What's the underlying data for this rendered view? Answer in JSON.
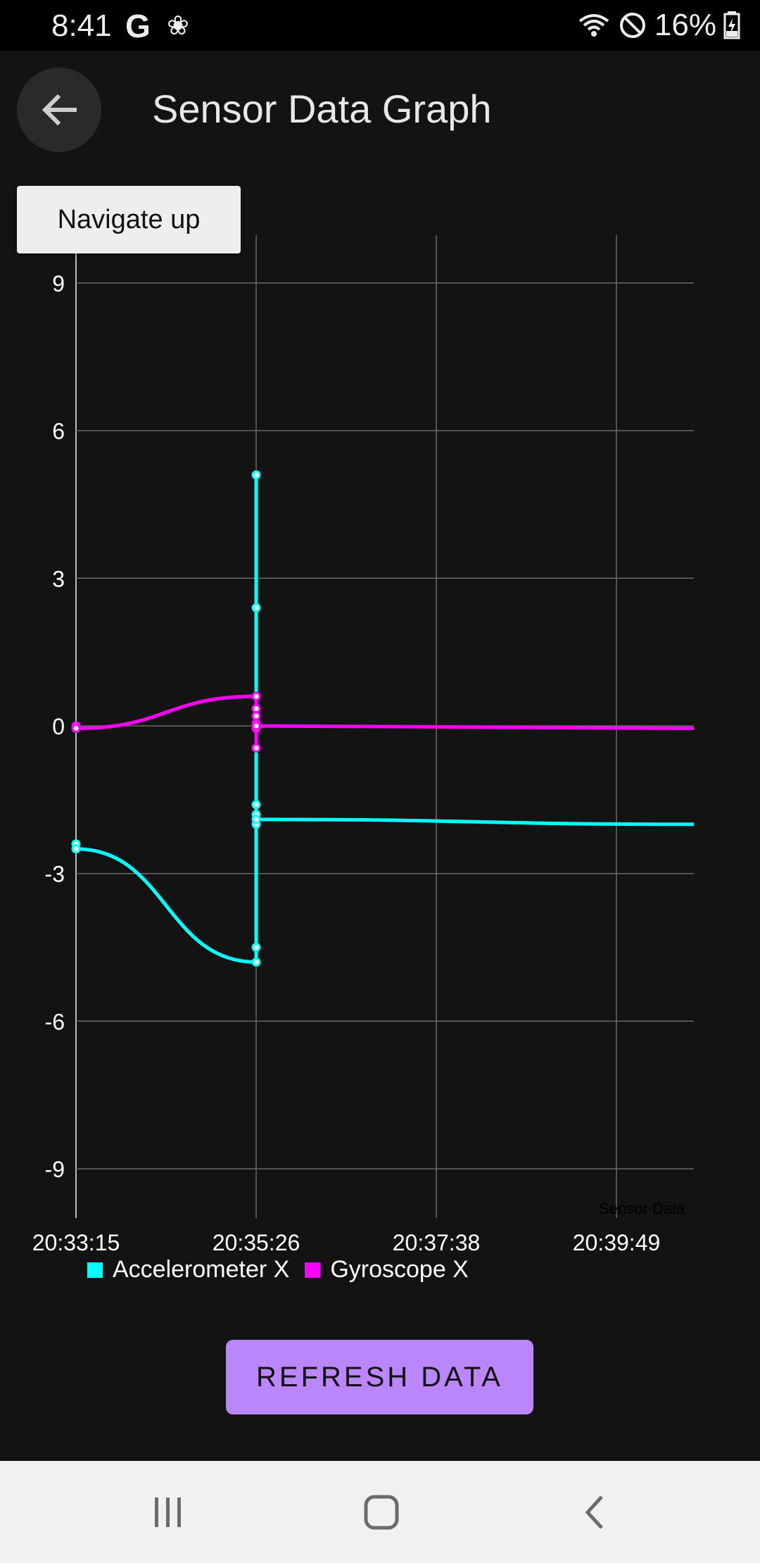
{
  "status": {
    "time": "8:41",
    "google_letter": "G",
    "battery_text": "16%",
    "icons": [
      "wifi-icon",
      "do-not-disturb-icon",
      "battery-charging-icon"
    ]
  },
  "toolbar": {
    "title": "Sensor Data Graph",
    "back_icon": "arrow-back-icon"
  },
  "tooltip": {
    "text": "Navigate up"
  },
  "chart_data": {
    "type": "line",
    "description": "Sensor Data",
    "x_ticks": [
      "20:33:15",
      "20:35:26",
      "20:37:38",
      "20:39:49"
    ],
    "y_ticks": [
      "9",
      "6",
      "3",
      "0",
      "-3",
      "-6",
      "-9"
    ],
    "ylim": [
      -10,
      10
    ],
    "grid": true,
    "legend_position": "bottom-left",
    "series": [
      {
        "name": "Accelerometer X",
        "color": "#00ffff",
        "x": [
          "20:33:15",
          "20:33:15",
          "20:35:26",
          "20:35:26",
          "20:35:26",
          "20:35:26",
          "20:35:26",
          "20:35:26",
          "20:35:26",
          "20:35:26",
          "20:41:00"
        ],
        "values": [
          -2.4,
          -2.5,
          -4.8,
          -4.5,
          5.1,
          2.4,
          -1.6,
          -1.8,
          -2.0,
          -1.9,
          -2.0
        ]
      },
      {
        "name": "Gyroscope X",
        "color": "#ff00ff",
        "x": [
          "20:33:15",
          "20:33:15",
          "20:35:26",
          "20:35:26",
          "20:35:26",
          "20:35:26",
          "20:35:26",
          "20:35:26",
          "20:35:26",
          "20:41:00"
        ],
        "values": [
          0.0,
          -0.05,
          0.6,
          0.35,
          0.2,
          0.05,
          -0.05,
          -0.45,
          0.0,
          -0.05
        ]
      }
    ]
  },
  "refresh_button": {
    "label": "REFRESH DATA"
  },
  "nav": {
    "recents_icon": "recent-apps-icon",
    "home_icon": "home-icon",
    "back_icon": "nav-back-icon"
  }
}
